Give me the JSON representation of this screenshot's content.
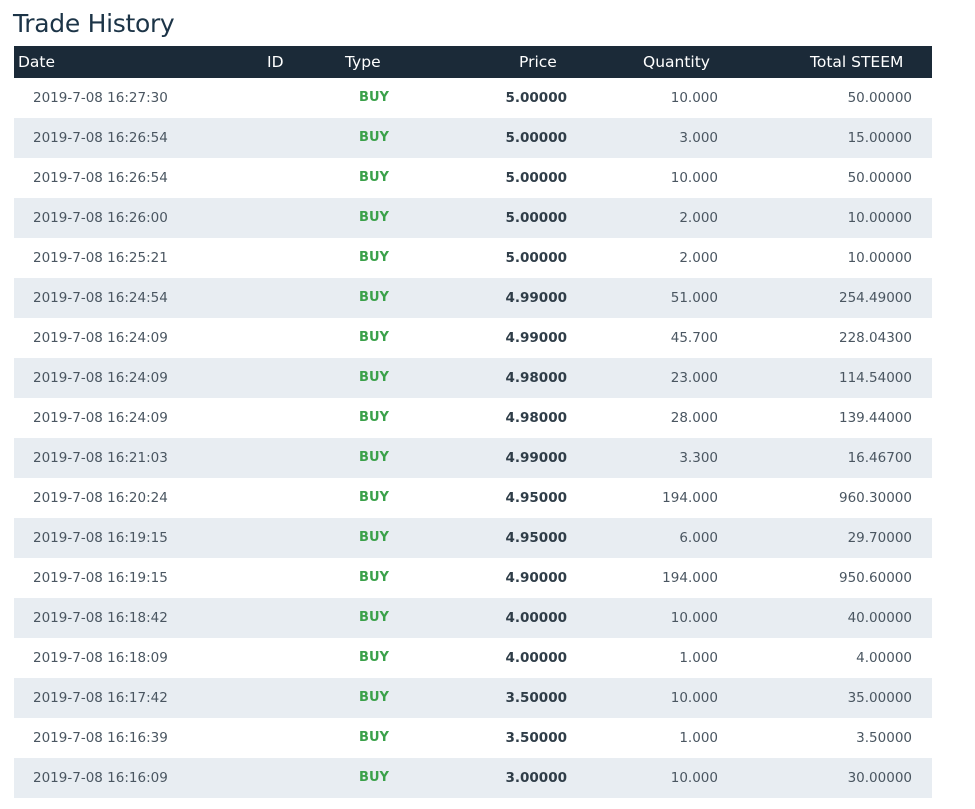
{
  "page": {
    "title": "Trade History"
  },
  "table": {
    "headers": {
      "date": "Date",
      "id": "ID",
      "type": "Type",
      "price": "Price",
      "quantity": "Quantity",
      "total": "Total STEEM"
    },
    "rows": [
      {
        "date": "2019-7-08 16:27:30",
        "id": "",
        "type": "BUY",
        "price": "5.00000",
        "quantity": "10.000",
        "total": "50.00000"
      },
      {
        "date": "2019-7-08 16:26:54",
        "id": "",
        "type": "BUY",
        "price": "5.00000",
        "quantity": "3.000",
        "total": "15.00000"
      },
      {
        "date": "2019-7-08 16:26:54",
        "id": "",
        "type": "BUY",
        "price": "5.00000",
        "quantity": "10.000",
        "total": "50.00000"
      },
      {
        "date": "2019-7-08 16:26:00",
        "id": "",
        "type": "BUY",
        "price": "5.00000",
        "quantity": "2.000",
        "total": "10.00000"
      },
      {
        "date": "2019-7-08 16:25:21",
        "id": "",
        "type": "BUY",
        "price": "5.00000",
        "quantity": "2.000",
        "total": "10.00000"
      },
      {
        "date": "2019-7-08 16:24:54",
        "id": "",
        "type": "BUY",
        "price": "4.99000",
        "quantity": "51.000",
        "total": "254.49000"
      },
      {
        "date": "2019-7-08 16:24:09",
        "id": "",
        "type": "BUY",
        "price": "4.99000",
        "quantity": "45.700",
        "total": "228.04300"
      },
      {
        "date": "2019-7-08 16:24:09",
        "id": "",
        "type": "BUY",
        "price": "4.98000",
        "quantity": "23.000",
        "total": "114.54000"
      },
      {
        "date": "2019-7-08 16:24:09",
        "id": "",
        "type": "BUY",
        "price": "4.98000",
        "quantity": "28.000",
        "total": "139.44000"
      },
      {
        "date": "2019-7-08 16:21:03",
        "id": "",
        "type": "BUY",
        "price": "4.99000",
        "quantity": "3.300",
        "total": "16.46700"
      },
      {
        "date": "2019-7-08 16:20:24",
        "id": "",
        "type": "BUY",
        "price": "4.95000",
        "quantity": "194.000",
        "total": "960.30000"
      },
      {
        "date": "2019-7-08 16:19:15",
        "id": "",
        "type": "BUY",
        "price": "4.95000",
        "quantity": "6.000",
        "total": "29.70000"
      },
      {
        "date": "2019-7-08 16:19:15",
        "id": "",
        "type": "BUY",
        "price": "4.90000",
        "quantity": "194.000",
        "total": "950.60000"
      },
      {
        "date": "2019-7-08 16:18:42",
        "id": "",
        "type": "BUY",
        "price": "4.00000",
        "quantity": "10.000",
        "total": "40.00000"
      },
      {
        "date": "2019-7-08 16:18:09",
        "id": "",
        "type": "BUY",
        "price": "4.00000",
        "quantity": "1.000",
        "total": "4.00000"
      },
      {
        "date": "2019-7-08 16:17:42",
        "id": "",
        "type": "BUY",
        "price": "3.50000",
        "quantity": "10.000",
        "total": "35.00000"
      },
      {
        "date": "2019-7-08 16:16:39",
        "id": "",
        "type": "BUY",
        "price": "3.50000",
        "quantity": "1.000",
        "total": "3.50000"
      },
      {
        "date": "2019-7-08 16:16:09",
        "id": "",
        "type": "BUY",
        "price": "3.00000",
        "quantity": "10.000",
        "total": "30.00000"
      }
    ]
  },
  "colors": {
    "header_bg": "#1b2a38",
    "alt_row_bg": "#e8edf2",
    "buy": "#3aa14a",
    "title": "#1c3447"
  }
}
